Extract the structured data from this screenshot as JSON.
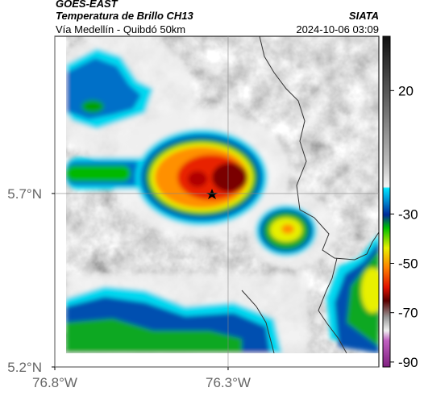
{
  "header": {
    "title": "GOES-EAST",
    "subtitle": "Temperatura de Brillo CH13",
    "source": "SIATA",
    "region": "Vía Medellín - Quibdó 50km",
    "timestamp": "2024-10-06 03:09"
  },
  "map": {
    "xlim": [
      -76.8,
      -75.865
    ],
    "ylim": [
      5.2,
      6.153
    ],
    "xticks": [
      {
        "value": -76.8,
        "label": "76.8°W"
      },
      {
        "value": -76.3,
        "label": "76.3°W"
      }
    ],
    "yticks": [
      {
        "value": 5.2,
        "label": "5.2°N"
      },
      {
        "value": 5.7,
        "label": "5.7°N"
      }
    ],
    "grid": true
  },
  "colorbar": {
    "clim": [
      -92,
      42
    ],
    "ticks": [
      20,
      -30,
      -50,
      -70,
      -90
    ]
  }
}
